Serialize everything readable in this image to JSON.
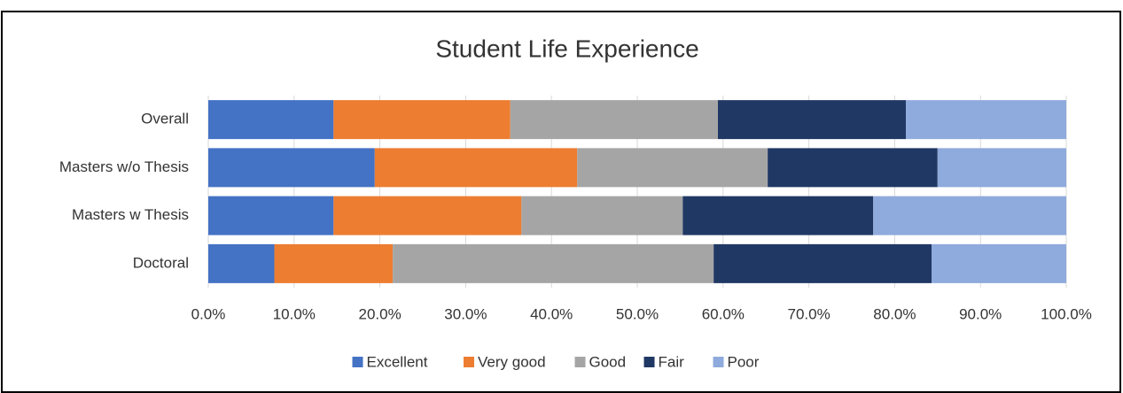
{
  "chart_data": {
    "type": "stacked_bar_horizontal",
    "title": "Student Life Experience",
    "categories": [
      "Overall",
      "Masters w/o Thesis",
      "Masters w Thesis",
      "Doctoral"
    ],
    "series": [
      {
        "name": "Excellent",
        "color": "#4472c4",
        "values": [
          14.6,
          19.4,
          14.6,
          7.7
        ]
      },
      {
        "name": "Very good",
        "color": "#ed7d31",
        "values": [
          20.6,
          23.6,
          21.9,
          13.8
        ]
      },
      {
        "name": "Good",
        "color": "#a5a5a5",
        "values": [
          24.2,
          22.2,
          18.8,
          37.4
        ]
      },
      {
        "name": "Fair",
        "color": "#203864",
        "values": [
          21.9,
          19.8,
          22.2,
          25.4
        ]
      },
      {
        "name": "Poor",
        "color": "#8faadc",
        "values": [
          18.7,
          15.0,
          22.5,
          15.7
        ]
      }
    ],
    "xlim": [
      0,
      100
    ],
    "xticks": [
      {
        "value": 0,
        "label": "0.0%"
      },
      {
        "value": 10,
        "label": "10.0%"
      },
      {
        "value": 20,
        "label": "20.0%"
      },
      {
        "value": 30,
        "label": "30.0%"
      },
      {
        "value": 40,
        "label": "40.0%"
      },
      {
        "value": 50,
        "label": "50.0%"
      },
      {
        "value": 60,
        "label": "60.0%"
      },
      {
        "value": 70,
        "label": "70.0%"
      },
      {
        "value": 80,
        "label": "80.0%"
      },
      {
        "value": 90,
        "label": "90.0%"
      },
      {
        "value": 100,
        "label": "100.0%"
      }
    ],
    "grid": true,
    "legend": "bottom"
  }
}
